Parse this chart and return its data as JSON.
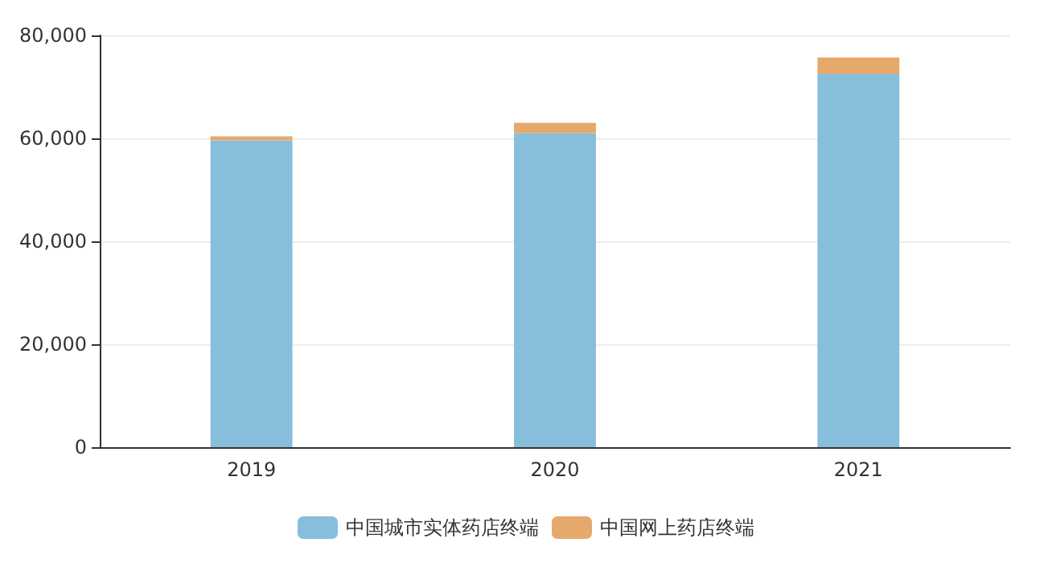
{
  "chart_data": {
    "type": "bar",
    "stacked": true,
    "categories": [
      "2019",
      "2020",
      "2021"
    ],
    "series": [
      {
        "name": "中国城市实体药店终端",
        "color": "#87bedc",
        "values": [
          59600,
          61000,
          72500
        ]
      },
      {
        "name": "中国网上药店终端",
        "color": "#e5a96c",
        "values": [
          800,
          2000,
          3200
        ]
      }
    ],
    "ylim": [
      0,
      80000
    ],
    "yticks": [
      0,
      {
        "value": 20000,
        "label": "20,000"
      },
      {
        "value": 40000,
        "label": "40,000"
      },
      {
        "value": 60000,
        "label": "60,000"
      },
      {
        "value": 80000,
        "label": "80,000"
      }
    ],
    "grid": "y",
    "legend": "bottom"
  }
}
